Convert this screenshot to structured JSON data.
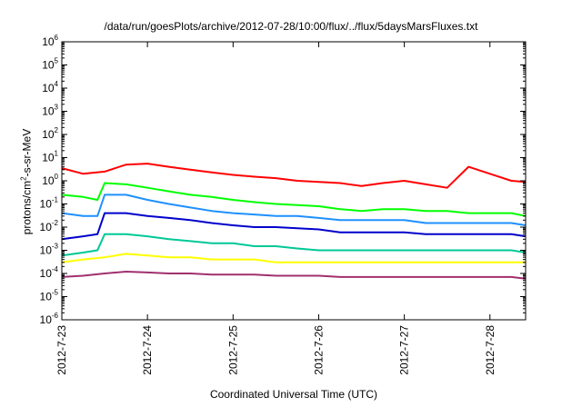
{
  "chart_data": {
    "type": "line",
    "title": "/data/run/goesPlots/archive/2012-07-28/10:00/flux/../flux/5daysMarsFluxes.txt",
    "xlabel": "Coordinated Universal Time (UTC)",
    "ylabel": {
      "prefix": "protons/cm",
      "sup": "2",
      "suffix": "-s-sr-MeV"
    },
    "y_scale": "log",
    "ylim_exponent": [
      -6,
      6
    ],
    "ytick_base": "10",
    "yticks_exponent": [
      "-6",
      "-5",
      "-4",
      "-3",
      "-2",
      "-1",
      "0",
      "1",
      "2",
      "3",
      "4",
      "5",
      "6"
    ],
    "xlim": [
      "2012-07-23 00:00",
      "2012-07-28 10:00"
    ],
    "x_tick_labels": [
      "2012-7-23",
      "2012-7-24",
      "2012-7-25",
      "2012-7-26",
      "2012-7-27",
      "2012-7-28"
    ],
    "grid": false,
    "legend": "none",
    "series": [
      {
        "color": "#ff0000",
        "x_hours": [
          0,
          6,
          12,
          18,
          24,
          30,
          36,
          42,
          48,
          54,
          60,
          66,
          72,
          78,
          84,
          90,
          96,
          102,
          108,
          114,
          120,
          126,
          130
        ],
        "y": [
          3.5,
          2.0,
          2.5,
          5.0,
          5.5,
          4.0,
          3.0,
          2.3,
          1.8,
          1.5,
          1.3,
          1.0,
          0.9,
          0.8,
          0.6,
          0.8,
          1.0,
          0.7,
          0.5,
          4.0,
          2.0,
          1.0,
          0.9
        ]
      },
      {
        "color": "#00ff00",
        "x_hours": [
          0,
          6,
          10,
          12,
          18,
          24,
          30,
          36,
          42,
          48,
          54,
          60,
          66,
          72,
          78,
          84,
          90,
          96,
          102,
          108,
          114,
          120,
          126,
          130
        ],
        "y": [
          0.25,
          0.2,
          0.15,
          0.8,
          0.7,
          0.5,
          0.35,
          0.25,
          0.2,
          0.15,
          0.12,
          0.1,
          0.09,
          0.08,
          0.06,
          0.05,
          0.06,
          0.06,
          0.05,
          0.05,
          0.04,
          0.04,
          0.04,
          0.03
        ]
      },
      {
        "color": "#1e90ff",
        "x_hours": [
          0,
          6,
          10,
          12,
          18,
          24,
          30,
          36,
          42,
          48,
          54,
          60,
          66,
          72,
          78,
          84,
          90,
          96,
          102,
          108,
          114,
          120,
          126,
          130
        ],
        "y": [
          0.04,
          0.03,
          0.03,
          0.25,
          0.25,
          0.15,
          0.1,
          0.07,
          0.05,
          0.04,
          0.035,
          0.03,
          0.03,
          0.025,
          0.02,
          0.02,
          0.02,
          0.02,
          0.015,
          0.015,
          0.015,
          0.015,
          0.015,
          0.012
        ]
      },
      {
        "color": "#0000cc",
        "x_hours": [
          0,
          6,
          10,
          12,
          18,
          24,
          30,
          36,
          42,
          48,
          54,
          60,
          66,
          72,
          78,
          84,
          90,
          96,
          102,
          108,
          114,
          120,
          126,
          130
        ],
        "y": [
          0.003,
          0.004,
          0.005,
          0.04,
          0.04,
          0.03,
          0.025,
          0.02,
          0.015,
          0.012,
          0.01,
          0.01,
          0.009,
          0.008,
          0.006,
          0.006,
          0.006,
          0.006,
          0.005,
          0.005,
          0.005,
          0.005,
          0.005,
          0.004
        ]
      },
      {
        "color": "#00c896",
        "x_hours": [
          0,
          6,
          10,
          12,
          18,
          24,
          30,
          36,
          42,
          48,
          54,
          60,
          66,
          72,
          78,
          84,
          90,
          96,
          102,
          108,
          114,
          120,
          126,
          130
        ],
        "y": [
          0.0006,
          0.0008,
          0.001,
          0.005,
          0.005,
          0.004,
          0.003,
          0.0025,
          0.002,
          0.002,
          0.0015,
          0.0015,
          0.0012,
          0.001,
          0.001,
          0.001,
          0.001,
          0.001,
          0.001,
          0.001,
          0.001,
          0.001,
          0.001,
          0.0008
        ]
      },
      {
        "color": "#ffff00",
        "x_hours": [
          0,
          6,
          12,
          18,
          24,
          30,
          36,
          42,
          48,
          54,
          60,
          66,
          72,
          78,
          84,
          90,
          96,
          102,
          108,
          114,
          120,
          126,
          130
        ],
        "y": [
          0.0003,
          0.0004,
          0.0005,
          0.0007,
          0.0006,
          0.0005,
          0.0005,
          0.0004,
          0.0004,
          0.0004,
          0.0003,
          0.0003,
          0.0003,
          0.0003,
          0.0003,
          0.0003,
          0.0003,
          0.0003,
          0.0003,
          0.0003,
          0.0003,
          0.0003,
          0.0003
        ]
      },
      {
        "color": "#a0306e",
        "x_hours": [
          0,
          6,
          12,
          18,
          24,
          30,
          36,
          42,
          48,
          54,
          60,
          66,
          72,
          78,
          84,
          90,
          96,
          102,
          108,
          114,
          120,
          126,
          130
        ],
        "y": [
          7e-05,
          8e-05,
          0.0001,
          0.00012,
          0.00011,
          0.0001,
          0.0001,
          9e-05,
          9e-05,
          9e-05,
          8e-05,
          8e-05,
          8e-05,
          7e-05,
          7e-05,
          7e-05,
          7e-05,
          7e-05,
          7e-05,
          7e-05,
          7e-05,
          7e-05,
          6e-05
        ]
      }
    ]
  }
}
